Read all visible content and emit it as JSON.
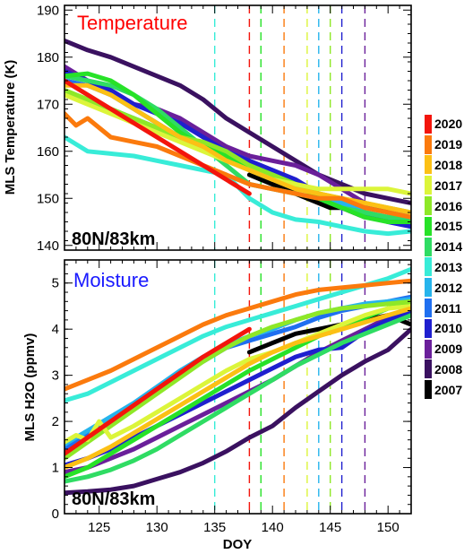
{
  "chart_data": [
    {
      "type": "line",
      "panel": "temperature",
      "title": "Temperature",
      "title_color": "#ff0000",
      "location_label": "80N/83km",
      "ylabel": "MLS Temperature (K)",
      "xlim": [
        122,
        152
      ],
      "ylim": [
        139,
        191
      ],
      "yticks": [
        140,
        150,
        160,
        170,
        180,
        190
      ],
      "series": [
        {
          "name": "2007",
          "x": [
            138,
            139,
            140,
            141,
            142,
            143,
            144,
            145,
            146,
            147,
            148,
            149,
            150,
            151,
            152
          ],
          "y": [
            155,
            154,
            153,
            152,
            151,
            150,
            149,
            148,
            148,
            147,
            146,
            146,
            145,
            145,
            144
          ]
        },
        {
          "name": "2008",
          "x": [
            122,
            124,
            126,
            128,
            130,
            132,
            134,
            136,
            138,
            140,
            142,
            144,
            146,
            148,
            150,
            152
          ],
          "y": [
            183.5,
            181.5,
            180,
            178,
            176,
            174,
            171,
            167,
            164,
            161,
            158,
            155,
            153,
            151,
            150,
            149
          ]
        },
        {
          "name": "2009",
          "x": [
            122,
            124,
            126,
            128,
            130,
            132,
            134,
            136,
            138,
            140,
            142,
            144,
            146,
            148,
            150,
            152
          ],
          "y": [
            178,
            175,
            172,
            170,
            169,
            167,
            164,
            161,
            159,
            158,
            157,
            155,
            152,
            149,
            147,
            146
          ]
        },
        {
          "name": "2010",
          "x": [
            122,
            124,
            126,
            128,
            130,
            132,
            134,
            136,
            138,
            140,
            142,
            144,
            146,
            148,
            150,
            152
          ],
          "y": [
            177,
            175,
            173,
            170,
            168,
            166,
            163,
            160,
            158,
            156,
            154,
            151,
            149,
            147,
            145,
            144
          ]
        },
        {
          "name": "2011",
          "x": [
            122,
            124,
            126,
            128,
            130,
            132,
            134,
            136,
            138,
            140,
            142,
            144,
            146,
            148,
            150,
            152
          ],
          "y": [
            175,
            174,
            172,
            169,
            166,
            163,
            161,
            159,
            157,
            155,
            153,
            151,
            149,
            147,
            146,
            145
          ]
        },
        {
          "name": "2012",
          "x": [
            122,
            124,
            126,
            128,
            130,
            132,
            134,
            136,
            138,
            140,
            142,
            144,
            146,
            148,
            150,
            152
          ],
          "y": [
            172,
            171,
            169,
            167,
            165,
            163,
            161,
            159,
            157,
            155,
            153,
            151,
            149,
            147,
            146,
            145
          ]
        },
        {
          "name": "2013",
          "x": [
            122,
            124,
            126,
            128,
            130,
            132,
            134,
            136,
            138,
            140,
            142,
            144,
            146,
            148,
            150,
            152
          ],
          "y": [
            163,
            160,
            159.5,
            159,
            158,
            157,
            156,
            155,
            150,
            147,
            145.5,
            145,
            144,
            143,
            142.5,
            143
          ]
        },
        {
          "name": "2014",
          "x": [
            122,
            124,
            126,
            128,
            130,
            132,
            134,
            136,
            138,
            140,
            142,
            144,
            146,
            148,
            150,
            152
          ],
          "y": [
            176,
            175,
            174,
            172,
            169,
            165,
            161,
            157,
            153,
            152,
            151,
            150,
            148,
            147,
            146,
            146
          ]
        },
        {
          "name": "2015",
          "x": [
            122,
            124,
            126,
            128,
            130,
            132,
            134,
            136,
            138,
            140,
            142,
            144,
            146,
            148,
            150,
            152
          ],
          "y": [
            176,
            176.5,
            175,
            172,
            168,
            164,
            161,
            159,
            157,
            155,
            153,
            150,
            148,
            146,
            145,
            145
          ]
        },
        {
          "name": "2016",
          "x": [
            122,
            124,
            126,
            128,
            130,
            132,
            134,
            136,
            138,
            140,
            142,
            144,
            146,
            148,
            150,
            152
          ],
          "y": [
            173,
            171,
            169,
            167,
            165,
            163,
            162,
            160,
            157,
            155,
            153,
            151,
            150,
            149,
            148,
            147
          ]
        },
        {
          "name": "2017",
          "x": [
            122,
            124,
            126,
            128,
            130,
            132,
            134,
            136,
            138,
            140,
            142,
            144,
            146,
            148,
            150,
            152
          ],
          "y": [
            172,
            170,
            168,
            166,
            164,
            162,
            160,
            158,
            156,
            154,
            153,
            152,
            152,
            152,
            152,
            151
          ]
        },
        {
          "name": "2018",
          "x": [
            122,
            124,
            126,
            128,
            130,
            132,
            134,
            136,
            138,
            140,
            142,
            144,
            146,
            148,
            150,
            152
          ],
          "y": [
            174,
            174,
            172,
            169,
            166,
            163,
            161,
            158,
            156,
            154,
            152,
            151,
            150,
            149,
            148,
            147
          ]
        },
        {
          "name": "2019",
          "x": [
            122,
            123,
            124,
            126,
            128,
            130,
            132,
            134,
            136,
            138,
            140,
            142,
            144,
            146,
            148,
            150,
            152
          ],
          "y": [
            168,
            165.5,
            167,
            163,
            162,
            161,
            159,
            157,
            155,
            153,
            152,
            151,
            150,
            150,
            148,
            147,
            146
          ]
        },
        {
          "name": "2020",
          "x": [
            122,
            124,
            126,
            128,
            130,
            132,
            134,
            136,
            138
          ],
          "y": [
            175,
            172,
            169,
            166,
            163,
            160,
            157,
            154,
            151
          ]
        }
      ]
    },
    {
      "type": "line",
      "panel": "moisture",
      "title": "Moisture",
      "title_color": "#1a1aff",
      "location_label": "80N/83km",
      "xlabel": "DOY",
      "ylabel": "MLS H2O (ppmv)",
      "xlim": [
        122,
        152
      ],
      "ylim": [
        0,
        5.5
      ],
      "xticks": [
        125,
        130,
        135,
        140,
        145,
        150
      ],
      "yticks": [
        0,
        1,
        2,
        3,
        4,
        5
      ],
      "series": [
        {
          "name": "2007",
          "x": [
            138,
            140,
            142,
            144,
            146,
            148,
            150,
            152
          ],
          "y": [
            3.5,
            3.7,
            3.9,
            4.0,
            4.1,
            4.2,
            4.3,
            4.1
          ]
        },
        {
          "name": "2008",
          "x": [
            122,
            124,
            126,
            128,
            130,
            132,
            134,
            136,
            138,
            140,
            142,
            144,
            146,
            148,
            150,
            152
          ],
          "y": [
            0.45,
            0.48,
            0.52,
            0.6,
            0.75,
            0.9,
            1.1,
            1.35,
            1.65,
            1.9,
            2.3,
            2.65,
            3.0,
            3.3,
            3.55,
            4.0
          ]
        },
        {
          "name": "2009",
          "x": [
            122,
            124,
            126,
            128,
            130,
            132,
            134,
            136,
            138,
            140,
            142,
            144,
            146,
            148,
            150,
            152
          ],
          "y": [
            0.9,
            1.0,
            1.2,
            1.4,
            1.65,
            1.9,
            2.15,
            2.4,
            2.65,
            2.9,
            3.2,
            3.5,
            3.75,
            4.0,
            4.25,
            4.5
          ]
        },
        {
          "name": "2010",
          "x": [
            122,
            124,
            126,
            128,
            130,
            132,
            134,
            136,
            138,
            140,
            142,
            144,
            146,
            148,
            150,
            152
          ],
          "y": [
            1.05,
            1.2,
            1.4,
            1.65,
            1.9,
            2.15,
            2.4,
            2.65,
            2.9,
            3.15,
            3.4,
            3.55,
            3.6,
            3.95,
            4.2,
            4.4
          ]
        },
        {
          "name": "2011",
          "x": [
            122,
            124,
            126,
            128,
            130,
            132,
            134,
            136,
            138,
            140,
            142,
            144,
            146,
            148,
            150,
            152
          ],
          "y": [
            1.4,
            1.7,
            2.0,
            2.35,
            2.65,
            3.0,
            3.3,
            3.6,
            3.75,
            3.9,
            4.05,
            4.25,
            4.4,
            4.5,
            4.6,
            4.7
          ]
        },
        {
          "name": "2012",
          "x": [
            122,
            124,
            126,
            128,
            130,
            132,
            134,
            136,
            138,
            140,
            142,
            144,
            146,
            148,
            150,
            152
          ],
          "y": [
            1.5,
            1.8,
            2.1,
            2.4,
            2.75,
            3.1,
            3.4,
            3.65,
            3.85,
            4.0,
            4.2,
            4.35,
            4.45,
            4.55,
            4.6,
            4.65
          ]
        },
        {
          "name": "2013",
          "x": [
            122,
            124,
            126,
            128,
            130,
            132,
            134,
            136,
            138,
            140,
            142,
            144,
            146,
            148,
            150,
            152
          ],
          "y": [
            2.45,
            2.6,
            2.85,
            3.1,
            3.35,
            3.6,
            3.85,
            4.05,
            4.2,
            4.35,
            4.5,
            4.65,
            4.8,
            4.95,
            5.1,
            5.3
          ]
        },
        {
          "name": "2014",
          "x": [
            122,
            124,
            126,
            128,
            130,
            132,
            134,
            136,
            138,
            140,
            142,
            144,
            146,
            148,
            150,
            152
          ],
          "y": [
            0.7,
            0.8,
            0.95,
            1.15,
            1.4,
            1.7,
            2.0,
            2.3,
            2.6,
            2.9,
            3.2,
            3.45,
            3.7,
            3.9,
            4.1,
            4.3
          ]
        },
        {
          "name": "2015",
          "x": [
            122,
            124,
            126,
            128,
            130,
            132,
            134,
            136,
            138,
            140,
            142,
            144,
            146,
            148,
            150,
            152
          ],
          "y": [
            0.8,
            1.0,
            1.3,
            1.6,
            1.9,
            2.2,
            2.5,
            2.8,
            3.1,
            3.35,
            3.6,
            3.85,
            4.05,
            4.25,
            4.45,
            4.6
          ]
        },
        {
          "name": "2016",
          "x": [
            122,
            124,
            126,
            128,
            130,
            132,
            134,
            136,
            138,
            140,
            142,
            144,
            146,
            148,
            150,
            152
          ],
          "y": [
            1.2,
            1.55,
            1.9,
            2.25,
            2.6,
            2.95,
            3.3,
            3.6,
            3.85,
            4.05,
            4.2,
            4.35,
            4.45,
            4.5,
            4.55,
            4.6
          ]
        },
        {
          "name": "2017",
          "x": [
            122,
            123,
            124,
            125,
            126,
            128,
            130,
            132,
            134,
            136,
            138,
            140,
            142,
            144,
            146,
            148,
            150,
            152
          ],
          "y": [
            1.55,
            1.7,
            1.6,
            2.0,
            1.65,
            1.9,
            2.2,
            2.5,
            2.8,
            3.1,
            3.35,
            3.5,
            3.7,
            3.9,
            4.1,
            4.3,
            4.45,
            4.5
          ]
        },
        {
          "name": "2018",
          "x": [
            122,
            124,
            126,
            128,
            130,
            132,
            134,
            136,
            138,
            140,
            142,
            144,
            146,
            148,
            150,
            152
          ],
          "y": [
            1.0,
            1.2,
            1.45,
            1.75,
            2.05,
            2.35,
            2.65,
            2.95,
            3.25,
            3.5,
            3.7,
            3.85,
            4.0,
            4.15,
            4.3,
            4.45
          ]
        },
        {
          "name": "2019",
          "x": [
            122,
            124,
            126,
            128,
            130,
            132,
            134,
            136,
            138,
            140,
            142,
            144,
            146,
            148,
            150,
            152
          ],
          "y": [
            2.7,
            2.9,
            3.1,
            3.35,
            3.6,
            3.85,
            4.1,
            4.3,
            4.45,
            4.6,
            4.75,
            4.85,
            4.9,
            4.95,
            5.0,
            5.05
          ]
        },
        {
          "name": "2020",
          "x": [
            122,
            124,
            126,
            128,
            130,
            132,
            134,
            136,
            138
          ],
          "y": [
            1.3,
            1.65,
            2.0,
            2.35,
            2.7,
            3.05,
            3.4,
            3.7,
            4.0
          ]
        }
      ]
    }
  ],
  "year_colors": {
    "2007": "#000000",
    "2008": "#3a1160",
    "2009": "#6a1f9a",
    "2010": "#1f1fcf",
    "2011": "#1f6ff0",
    "2012": "#26b4ec",
    "2013": "#38ecd8",
    "2014": "#2fdc63",
    "2015": "#27e228",
    "2016": "#8ee827",
    "2017": "#dcf53a",
    "2018": "#fcc015",
    "2019": "#fb7a0d",
    "2020": "#f3150c"
  },
  "legend": [
    "2020",
    "2019",
    "2018",
    "2017",
    "2016",
    "2015",
    "2014",
    "2013",
    "2012",
    "2011",
    "2010",
    "2009",
    "2008",
    "2007"
  ],
  "vlines": [
    {
      "year": "2013",
      "doy": 135
    },
    {
      "year": "2020",
      "doy": 138
    },
    {
      "year": "2015",
      "doy": 139
    },
    {
      "year": "2019",
      "doy": 141
    },
    {
      "year": "2017",
      "doy": 143
    },
    {
      "year": "2012",
      "doy": 144
    },
    {
      "year": "2016",
      "doy": 145
    },
    {
      "year": "2010",
      "doy": 146
    },
    {
      "year": "2009",
      "doy": 148
    }
  ]
}
